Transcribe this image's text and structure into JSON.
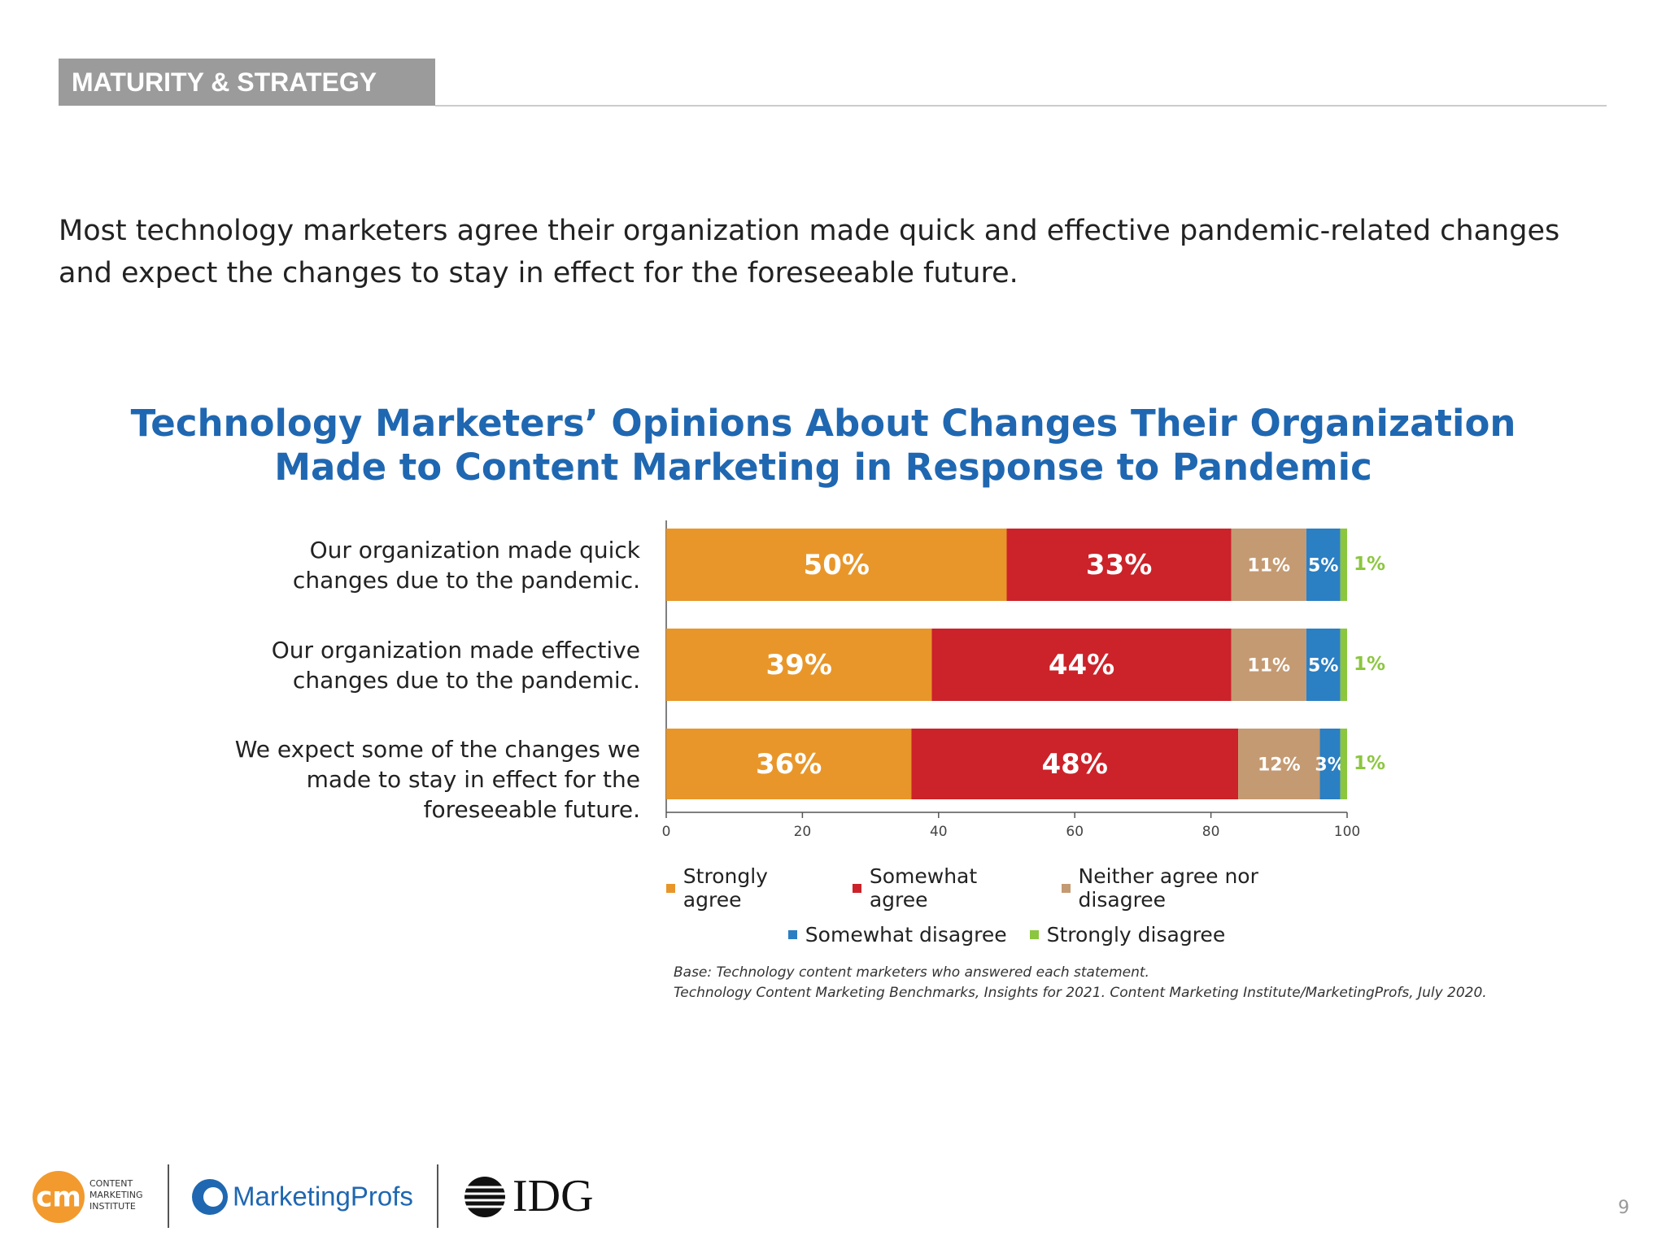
{
  "header": {
    "section": "MATURITY & STRATEGY",
    "intro": "Most technology marketers agree their organization made quick and effective pandemic-related changes and expect the changes to stay in effect for the foreseeable future."
  },
  "chart_data": {
    "type": "stacked-bar-horizontal",
    "title": [
      "Technology Marketers’ Opinions About Changes Their Organization",
      "Made to Content Marketing in Response to Pandemic"
    ],
    "categories": [
      "Our organization made quick changes due to the pandemic.",
      "Our organization made effective changes due to the pandemic.",
      "We expect some of the changes we made to stay in effect for the foreseeable future."
    ],
    "series": [
      {
        "name": "Strongly agree",
        "color": "#e8962a",
        "values": [
          50,
          39,
          36
        ],
        "value_labels": [
          "50%",
          "39%",
          "36%"
        ]
      },
      {
        "name": "Somewhat agree",
        "color": "#cc2229",
        "values": [
          33,
          44,
          48
        ],
        "value_labels": [
          "33%",
          "44%",
          "48%"
        ]
      },
      {
        "name": "Neither agree nor disagree",
        "color": "#c49a72",
        "values": [
          11,
          11,
          12
        ],
        "value_labels": [
          "11%",
          "11%",
          "12%"
        ]
      },
      {
        "name": "Somewhat disagree",
        "color": "#2b7fc3",
        "values": [
          5,
          5,
          3
        ],
        "value_labels": [
          "5%",
          "5%",
          "3%"
        ]
      },
      {
        "name": "Strongly disagree",
        "color": "#8cc63f",
        "values": [
          1,
          1,
          1
        ],
        "value_labels": [
          "1%",
          "1%",
          "1%"
        ]
      }
    ],
    "xlim": [
      0,
      100
    ],
    "xticks": [
      0,
      20,
      40,
      60,
      80,
      100
    ],
    "notes": [
      "Base: Technology content marketers who answered each statement.",
      "Technology Content Marketing Benchmarks, Insights for 2021. Content Marketing Institute/MarketingProfs, July 2020."
    ]
  },
  "footer": {
    "cmi_mark": "cm",
    "cmi_name": [
      "CONTENT",
      "MARKETING",
      "INSTITUTE"
    ],
    "marketingprofs": "MarketingProfs",
    "idg": "IDG",
    "page_number": "9"
  }
}
